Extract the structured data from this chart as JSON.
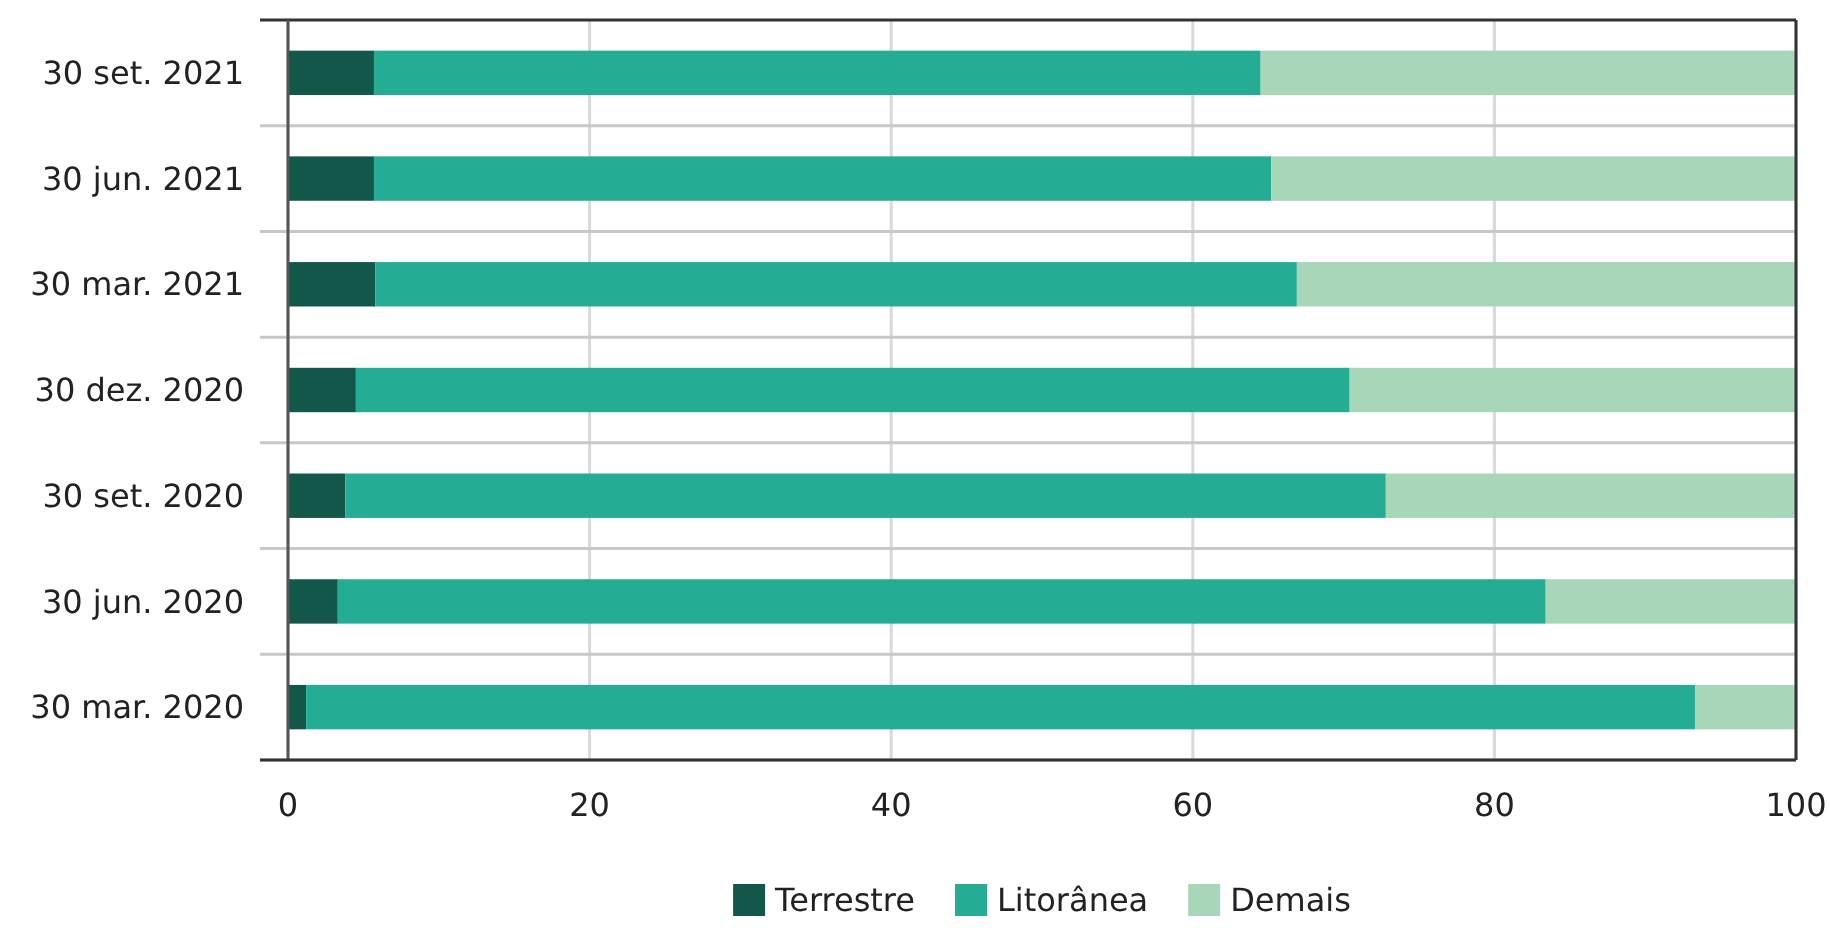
{
  "chart_data": {
    "type": "bar",
    "orientation": "horizontal",
    "stacked": true,
    "categories": [
      "30 set. 2021",
      "30 jun. 2021",
      "30 mar. 2021",
      "30 dez. 2020",
      "30 set. 2020",
      "30 jun. 2020",
      "30 mar. 2020"
    ],
    "series": [
      {
        "name": "Terrestre",
        "color": "#13574b",
        "values": [
          5.7,
          5.7,
          5.8,
          4.5,
          3.8,
          3.3,
          1.2
        ]
      },
      {
        "name": "Litorânea",
        "color": "#24ad94",
        "values": [
          58.8,
          59.5,
          61.1,
          65.9,
          69.0,
          80.1,
          92.1
        ]
      },
      {
        "name": "Demais",
        "color": "#a8d6b8",
        "values": [
          35.5,
          34.8,
          33.1,
          29.6,
          27.2,
          16.6,
          6.7
        ]
      }
    ],
    "xlim": [
      0,
      100
    ],
    "xticks": [
      0,
      20,
      40,
      60,
      80,
      100
    ],
    "grid": "x",
    "legend": "bottom"
  }
}
